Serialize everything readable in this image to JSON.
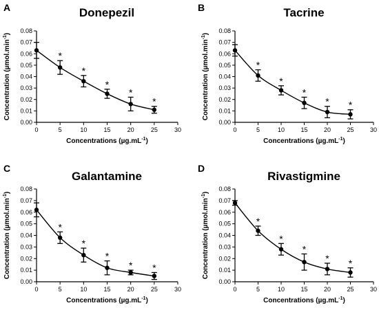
{
  "chart_data": [
    {
      "type": "line",
      "panel_label": "A",
      "title": "Donepezil",
      "xlabel": "Concentrations (µg.mL",
      "xlabel_superscript": "-1",
      "xlabel_suffix": ")",
      "ylabel": "Concentration (µmol.min",
      "ylabel_superscript": "-1",
      "ylabel_suffix": ")",
      "xlim": [
        0,
        30
      ],
      "ylim": [
        0,
        0.08
      ],
      "xticks": [
        "0",
        "5",
        "10",
        "15",
        "20",
        "25",
        "30"
      ],
      "yticks": [
        "0.00",
        "0.01",
        "0.02",
        "0.03",
        "0.04",
        "0.05",
        "0.06",
        "0.07",
        "0.08"
      ],
      "x": [
        0,
        5,
        10,
        15,
        20,
        25
      ],
      "y": [
        0.063,
        0.048,
        0.036,
        0.025,
        0.016,
        0.011
      ],
      "error": [
        0.007,
        0.006,
        0.005,
        0.004,
        0.006,
        0.003
      ],
      "significance": [
        "",
        "*",
        "*",
        "*",
        "*",
        "*"
      ]
    },
    {
      "type": "line",
      "panel_label": "B",
      "title": "Tacrine",
      "xlabel": "Concentrations (µg.mL",
      "xlabel_superscript": "-1",
      "xlabel_suffix": ")",
      "ylabel": "Concentration (µmol.min",
      "ylabel_superscript": "-1",
      "ylabel_suffix": ")",
      "xlim": [
        0,
        30
      ],
      "ylim": [
        0,
        0.08
      ],
      "xticks": [
        "0",
        "5",
        "10",
        "15",
        "20",
        "25",
        "30"
      ],
      "yticks": [
        "0.00",
        "0.01",
        "0.02",
        "0.03",
        "0.04",
        "0.05",
        "0.06",
        "0.07",
        "0.08"
      ],
      "x": [
        0,
        5,
        10,
        15,
        20,
        25
      ],
      "y": [
        0.063,
        0.041,
        0.028,
        0.017,
        0.009,
        0.007
      ],
      "error": [
        0.005,
        0.005,
        0.004,
        0.005,
        0.005,
        0.004
      ],
      "significance": [
        "",
        "*",
        "*",
        "*",
        "*",
        "*"
      ]
    },
    {
      "type": "line",
      "panel_label": "C",
      "title": "Galantamine",
      "xlabel": "Concentrations (µg.mL",
      "xlabel_superscript": "-1",
      "xlabel_suffix": ")",
      "ylabel": "Concentration (µmol.min",
      "ylabel_superscript": "-1",
      "ylabel_suffix": ")",
      "xlim": [
        0,
        30
      ],
      "ylim": [
        0,
        0.08
      ],
      "xticks": [
        "0",
        "5",
        "10",
        "15",
        "20",
        "25",
        "30"
      ],
      "yticks": [
        "0.00",
        "0.01",
        "0.02",
        "0.03",
        "0.04",
        "0.05",
        "0.06",
        "0.07",
        "0.08"
      ],
      "x": [
        0,
        5,
        10,
        15,
        20,
        25
      ],
      "y": [
        0.062,
        0.038,
        0.023,
        0.012,
        0.008,
        0.005
      ],
      "error": [
        0.006,
        0.005,
        0.006,
        0.006,
        0.002,
        0.003
      ],
      "significance": [
        "",
        "*",
        "*",
        "*",
        "*",
        "*"
      ]
    },
    {
      "type": "line",
      "panel_label": "D",
      "title": "Rivastigmine",
      "xlabel": "Concentrations (µg.mL",
      "xlabel_superscript": "-1",
      "xlabel_suffix": ")",
      "ylabel": "Concentration (µmol.min",
      "ylabel_superscript": "-1",
      "ylabel_suffix": ")",
      "xlim": [
        0,
        30
      ],
      "ylim": [
        0,
        0.08
      ],
      "xticks": [
        "0",
        "5",
        "10",
        "15",
        "20",
        "25",
        "30"
      ],
      "yticks": [
        "0.00",
        "0.01",
        "0.02",
        "0.03",
        "0.04",
        "0.05",
        "0.06",
        "0.07",
        "0.08"
      ],
      "x": [
        0,
        5,
        10,
        15,
        20,
        25
      ],
      "y": [
        0.068,
        0.044,
        0.028,
        0.017,
        0.011,
        0.008
      ],
      "error": [
        0.002,
        0.004,
        0.005,
        0.007,
        0.005,
        0.004
      ],
      "significance": [
        "",
        "*",
        "*",
        "*",
        "*",
        "*"
      ]
    }
  ]
}
